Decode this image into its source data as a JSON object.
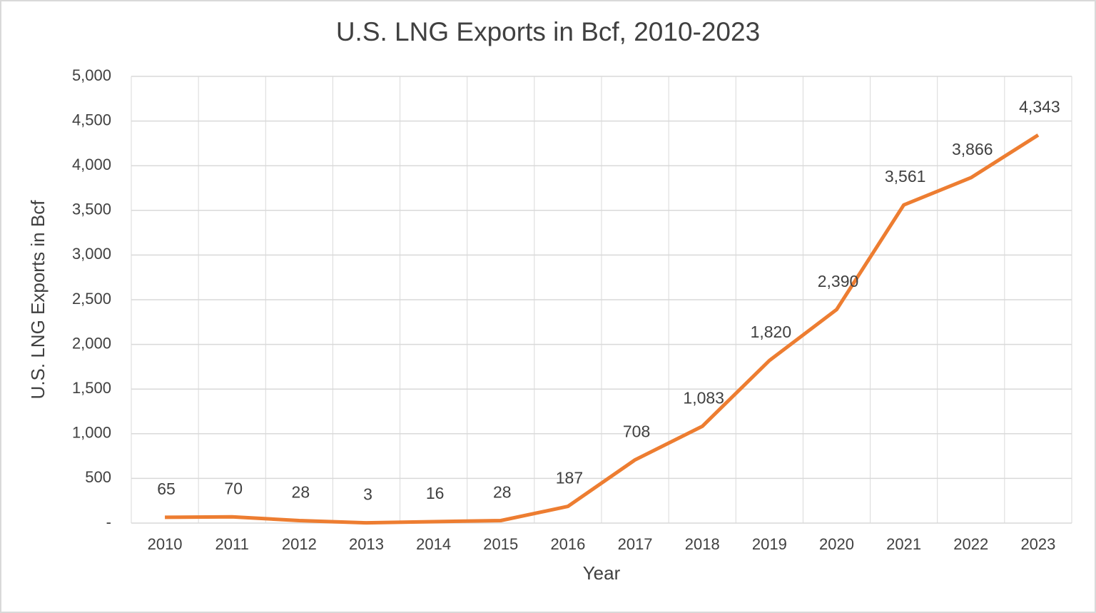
{
  "chart_data": {
    "type": "line",
    "title": "U.S. LNG Exports in Bcf, 2010-2023",
    "x_label": "Year",
    "y_label": "U.S. LNG Exports in Bcf",
    "categories": [
      "2010",
      "2011",
      "2012",
      "2013",
      "2014",
      "2015",
      "2016",
      "2017",
      "2018",
      "2019",
      "2020",
      "2021",
      "2022",
      "2023"
    ],
    "series": [
      {
        "name": "U.S. LNG Exports in Bcf",
        "color": "#ed7d31",
        "values": [
          65,
          70,
          28,
          3,
          16,
          28,
          187,
          708,
          1083,
          1820,
          2390,
          3561,
          3866,
          4343
        ],
        "value_labels": [
          "65",
          "70",
          "28",
          "3",
          "16",
          "28",
          "187",
          "708",
          "1,083",
          "1,820",
          "2,390",
          "3,561",
          "3,866",
          "4,343"
        ]
      }
    ],
    "ylim": [
      0,
      5000
    ],
    "yticks": [
      {
        "value": 0,
        "label": "-"
      },
      500,
      {
        "value": 1000,
        "label": "1,000"
      },
      {
        "value": 1500,
        "label": "1,500"
      },
      {
        "value": 2000,
        "label": "2,000"
      },
      {
        "value": 2500,
        "label": "2,500"
      },
      {
        "value": 3000,
        "label": "3,000"
      },
      {
        "value": 3500,
        "label": "3,500"
      },
      {
        "value": 4000,
        "label": "4,000"
      },
      {
        "value": 4500,
        "label": "4,500"
      },
      {
        "value": 5000,
        "label": "5,000"
      }
    ],
    "grid": true
  }
}
